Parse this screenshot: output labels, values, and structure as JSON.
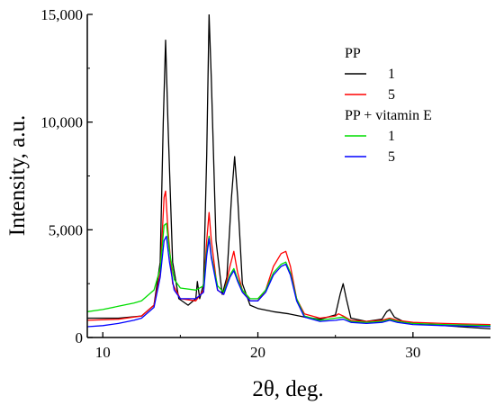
{
  "chart_data": {
    "type": "line",
    "xlabel": "2θ, deg.",
    "ylabel": "Intensity, a.u.",
    "xlim": [
      9,
      35
    ],
    "ylim": [
      0,
      15000
    ],
    "x_ticks": [
      10,
      20,
      30
    ],
    "x_tick_labels": [
      "10",
      "20",
      "30"
    ],
    "y_ticks": [
      0,
      5000,
      10000,
      15000
    ],
    "y_tick_labels": [
      "0",
      "5,000",
      "10,000",
      "15,000"
    ],
    "grid": false,
    "legend": {
      "placement": "top-right",
      "groups": [
        {
          "title": "PP",
          "entries": [
            {
              "label": "1",
              "series": 0
            },
            {
              "label": "5",
              "series": 1
            }
          ]
        },
        {
          "title": "PP + vitamin E",
          "entries": [
            {
              "label": "1",
              "series": 2
            },
            {
              "label": "5",
              "series": 3
            }
          ]
        }
      ]
    },
    "series": [
      {
        "group": "PP",
        "label": "1",
        "color": "#000000",
        "points": [
          [
            9,
            900
          ],
          [
            11,
            900
          ],
          [
            12.5,
            1000
          ],
          [
            13.3,
            1500
          ],
          [
            13.7,
            3500
          ],
          [
            13.9,
            10000
          ],
          [
            14.05,
            13800
          ],
          [
            14.2,
            10000
          ],
          [
            14.5,
            3500
          ],
          [
            14.9,
            1800
          ],
          [
            15.5,
            1500
          ],
          [
            16,
            1800
          ],
          [
            16.1,
            2600
          ],
          [
            16.25,
            1800
          ],
          [
            16.5,
            2500
          ],
          [
            16.7,
            8500
          ],
          [
            16.85,
            15000
          ],
          [
            17.0,
            12000
          ],
          [
            17.3,
            4500
          ],
          [
            17.7,
            2000
          ],
          [
            18.0,
            2800
          ],
          [
            18.3,
            6500
          ],
          [
            18.5,
            8400
          ],
          [
            18.7,
            6500
          ],
          [
            19.0,
            2500
          ],
          [
            19.5,
            1500
          ],
          [
            20,
            1350
          ],
          [
            21,
            1200
          ],
          [
            22,
            1100
          ],
          [
            23,
            950
          ],
          [
            24,
            850
          ],
          [
            25,
            1050
          ],
          [
            25.3,
            2000
          ],
          [
            25.5,
            2500
          ],
          [
            25.7,
            1800
          ],
          [
            26,
            900
          ],
          [
            27,
            750
          ],
          [
            28,
            850
          ],
          [
            28.3,
            1200
          ],
          [
            28.5,
            1300
          ],
          [
            28.8,
            950
          ],
          [
            29.5,
            700
          ],
          [
            31,
            600
          ],
          [
            33,
            500
          ],
          [
            35,
            400
          ]
        ]
      },
      {
        "group": "PP",
        "label": "5",
        "color": "#ff0000",
        "points": [
          [
            9,
            800
          ],
          [
            11,
            850
          ],
          [
            12.5,
            1000
          ],
          [
            13.3,
            1500
          ],
          [
            13.7,
            3000
          ],
          [
            13.95,
            6500
          ],
          [
            14.05,
            6800
          ],
          [
            14.2,
            5000
          ],
          [
            14.5,
            2500
          ],
          [
            15,
            1800
          ],
          [
            16,
            1700
          ],
          [
            16.5,
            2200
          ],
          [
            16.7,
            4500
          ],
          [
            16.85,
            5800
          ],
          [
            17.0,
            4500
          ],
          [
            17.4,
            2200
          ],
          [
            17.8,
            2000
          ],
          [
            18.2,
            3300
          ],
          [
            18.45,
            4000
          ],
          [
            18.7,
            3000
          ],
          [
            19,
            2200
          ],
          [
            19.5,
            1700
          ],
          [
            20,
            1700
          ],
          [
            20.5,
            2200
          ],
          [
            21,
            3300
          ],
          [
            21.5,
            3900
          ],
          [
            21.8,
            4000
          ],
          [
            22.1,
            3300
          ],
          [
            22.5,
            1800
          ],
          [
            23,
            1100
          ],
          [
            24,
            900
          ],
          [
            25,
            1000
          ],
          [
            25.2,
            1100
          ],
          [
            25.5,
            1000
          ],
          [
            26,
            800
          ],
          [
            27,
            750
          ],
          [
            28,
            800
          ],
          [
            28.5,
            900
          ],
          [
            29,
            800
          ],
          [
            30,
            700
          ],
          [
            32,
            650
          ],
          [
            35,
            600
          ]
        ]
      },
      {
        "group": "PP + vitamin E",
        "label": "1",
        "color": "#00dd00",
        "points": [
          [
            9,
            1200
          ],
          [
            10,
            1300
          ],
          [
            11,
            1450
          ],
          [
            12,
            1600
          ],
          [
            12.5,
            1700
          ],
          [
            13.3,
            2200
          ],
          [
            13.7,
            3200
          ],
          [
            13.95,
            5200
          ],
          [
            14.1,
            5300
          ],
          [
            14.3,
            4000
          ],
          [
            14.6,
            2700
          ],
          [
            15,
            2300
          ],
          [
            16,
            2200
          ],
          [
            16.5,
            2400
          ],
          [
            16.7,
            4000
          ],
          [
            16.85,
            4700
          ],
          [
            17.0,
            3800
          ],
          [
            17.4,
            2400
          ],
          [
            17.8,
            2100
          ],
          [
            18.2,
            2900
          ],
          [
            18.45,
            3200
          ],
          [
            18.7,
            2700
          ],
          [
            19,
            2200
          ],
          [
            19.5,
            1800
          ],
          [
            20,
            1800
          ],
          [
            20.5,
            2200
          ],
          [
            21,
            3000
          ],
          [
            21.5,
            3400
          ],
          [
            21.8,
            3500
          ],
          [
            22.1,
            3000
          ],
          [
            22.5,
            1800
          ],
          [
            23,
            1000
          ],
          [
            24,
            800
          ],
          [
            25,
            900
          ],
          [
            25.5,
            950
          ],
          [
            26,
            750
          ],
          [
            27,
            700
          ],
          [
            28,
            750
          ],
          [
            28.5,
            850
          ],
          [
            29,
            750
          ],
          [
            30,
            650
          ],
          [
            32,
            600
          ],
          [
            35,
            550
          ]
        ]
      },
      {
        "group": "PP + vitamin E",
        "label": "5",
        "color": "#0000ff",
        "points": [
          [
            9,
            500
          ],
          [
            10,
            550
          ],
          [
            11,
            650
          ],
          [
            12,
            800
          ],
          [
            12.5,
            900
          ],
          [
            13.3,
            1400
          ],
          [
            13.7,
            2800
          ],
          [
            13.95,
            4500
          ],
          [
            14.1,
            4700
          ],
          [
            14.3,
            3500
          ],
          [
            14.6,
            2200
          ],
          [
            15,
            1800
          ],
          [
            16,
            1800
          ],
          [
            16.5,
            2100
          ],
          [
            16.7,
            3800
          ],
          [
            16.85,
            4600
          ],
          [
            17.0,
            3700
          ],
          [
            17.4,
            2200
          ],
          [
            17.8,
            2000
          ],
          [
            18.2,
            2800
          ],
          [
            18.45,
            3100
          ],
          [
            18.7,
            2600
          ],
          [
            19,
            2100
          ],
          [
            19.5,
            1700
          ],
          [
            20,
            1700
          ],
          [
            20.5,
            2100
          ],
          [
            21,
            2900
          ],
          [
            21.5,
            3300
          ],
          [
            21.8,
            3400
          ],
          [
            22.1,
            2900
          ],
          [
            22.5,
            1700
          ],
          [
            23,
            950
          ],
          [
            24,
            750
          ],
          [
            25,
            800
          ],
          [
            25.5,
            850
          ],
          [
            26,
            700
          ],
          [
            27,
            650
          ],
          [
            28,
            700
          ],
          [
            28.5,
            800
          ],
          [
            29,
            700
          ],
          [
            30,
            600
          ],
          [
            32,
            550
          ],
          [
            35,
            500
          ]
        ]
      }
    ]
  }
}
